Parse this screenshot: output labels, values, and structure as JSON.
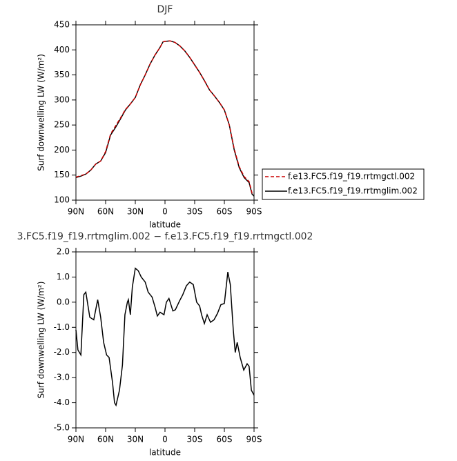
{
  "chart_data": [
    {
      "type": "line",
      "title": "DJF",
      "xlabel": "latitude",
      "ylabel": "Surf downwelling LW (W/m²)",
      "x": [
        90,
        85,
        80,
        75,
        70,
        65,
        60,
        55,
        50,
        45,
        40,
        35,
        30,
        25,
        20,
        15,
        10,
        5,
        2,
        0,
        -5,
        -10,
        -15,
        -20,
        -25,
        -30,
        -35,
        -40,
        -45,
        -50,
        -55,
        -60,
        -65,
        -70,
        -75,
        -80,
        -85,
        -88,
        -90
      ],
      "series": [
        {
          "name": "f.e13.FC5.f19_f19.rrtmgctl.002",
          "color": "#cc0000",
          "linestyle": "dashed",
          "values": [
            146,
            149,
            152,
            160,
            172,
            178,
            197,
            232,
            248,
            264,
            281,
            292,
            305,
            330,
            350,
            372,
            390,
            405,
            416,
            417,
            418,
            415,
            408,
            398,
            385,
            370,
            355,
            338,
            320,
            308,
            295,
            280,
            250,
            202,
            167,
            147,
            137,
            114,
            111
          ]
        },
        {
          "name": "f.e13.FC5.f19_f19.rrtmglim.002",
          "color": "#000000",
          "linestyle": "solid",
          "values": [
            145,
            148,
            152,
            160,
            172,
            178,
            195,
            230,
            245,
            262,
            280,
            292,
            305,
            330,
            350,
            372,
            390,
            405,
            416,
            417,
            418,
            415,
            408,
            398,
            385,
            370,
            355,
            338,
            320,
            308,
            295,
            280,
            250,
            200,
            165,
            145,
            135,
            112,
            108
          ]
        }
      ],
      "xlim": [
        90,
        -90
      ],
      "ylim": [
        100,
        450
      ],
      "xticks": [
        {
          "value": 90,
          "label": "90N"
        },
        {
          "value": 60,
          "label": "60N"
        },
        {
          "value": 30,
          "label": "30N"
        },
        0,
        {
          "value": -30,
          "label": "30S"
        },
        {
          "value": -60,
          "label": "60S"
        },
        {
          "value": -90,
          "label": "90S"
        }
      ],
      "yticks": [
        100,
        150,
        200,
        250,
        300,
        350,
        400,
        450
      ],
      "legend": "right"
    },
    {
      "type": "line",
      "title": "3.FC5.f19_f19.rrtmglim.002 − f.e13.FC5.f19_f19.rrtmgctl.002",
      "xlabel": "latitude",
      "ylabel": "Surf downwelling LW (W/m²)",
      "x": [
        90,
        88,
        85,
        82,
        80,
        76,
        72,
        68,
        65,
        62,
        59,
        56.5,
        53,
        51,
        49.5,
        46,
        43,
        40.5,
        38,
        37,
        35,
        33,
        30,
        27,
        24,
        20,
        17,
        13,
        10,
        7.7,
        5,
        1,
        -1.4,
        -4,
        -8,
        -10.5,
        -14.7,
        -18,
        -21.6,
        -25,
        -28.6,
        -32,
        -35,
        -37,
        -39.8,
        -42.6,
        -46,
        -49.6,
        -53,
        -56.5,
        -60,
        -63.5,
        -66,
        -69,
        -71,
        -73,
        -76,
        -79.6,
        -83,
        -85,
        -87.3,
        -90
      ],
      "series": [
        {
          "color": "#000000",
          "linestyle": "solid",
          "values": [
            -1.1,
            -1.9,
            -2.1,
            0.3,
            0.4,
            -0.6,
            -0.7,
            0.1,
            -0.6,
            -1.6,
            -2.1,
            -2.2,
            -3.2,
            -4.0,
            -4.1,
            -3.5,
            -2.5,
            -0.5,
            0.0,
            0.1,
            -0.5,
            0.6,
            1.35,
            1.25,
            1.0,
            0.8,
            0.4,
            0.2,
            -0.2,
            -0.55,
            -0.4,
            -0.5,
            0.0,
            0.15,
            -0.35,
            -0.3,
            0.05,
            0.3,
            0.65,
            0.8,
            0.7,
            0.0,
            -0.15,
            -0.5,
            -0.85,
            -0.5,
            -0.8,
            -0.7,
            -0.45,
            -0.1,
            -0.05,
            1.2,
            0.7,
            -1.1,
            -2.0,
            -1.6,
            -2.2,
            -2.7,
            -2.45,
            -2.55,
            -3.5,
            -3.7
          ]
        }
      ],
      "xlim": [
        90,
        -90
      ],
      "ylim": [
        -5,
        2
      ],
      "xticks": [
        {
          "value": 90,
          "label": "90N"
        },
        {
          "value": 60,
          "label": "60N"
        },
        {
          "value": 30,
          "label": "30N"
        },
        0,
        {
          "value": -30,
          "label": "30S"
        },
        {
          "value": -60,
          "label": "60S"
        },
        {
          "value": -90,
          "label": "90S"
        }
      ],
      "yticks": [
        {
          "value": 2,
          "label": "2.0"
        },
        {
          "value": 1,
          "label": "1.0"
        },
        {
          "value": 0,
          "label": "0.0"
        },
        {
          "value": -1,
          "label": "-1.0"
        },
        {
          "value": -2,
          "label": "-2.0"
        },
        {
          "value": -3,
          "label": "-3.0"
        },
        {
          "value": -4,
          "label": "-4.0"
        },
        {
          "value": -5,
          "label": "-5.0"
        }
      ]
    }
  ]
}
